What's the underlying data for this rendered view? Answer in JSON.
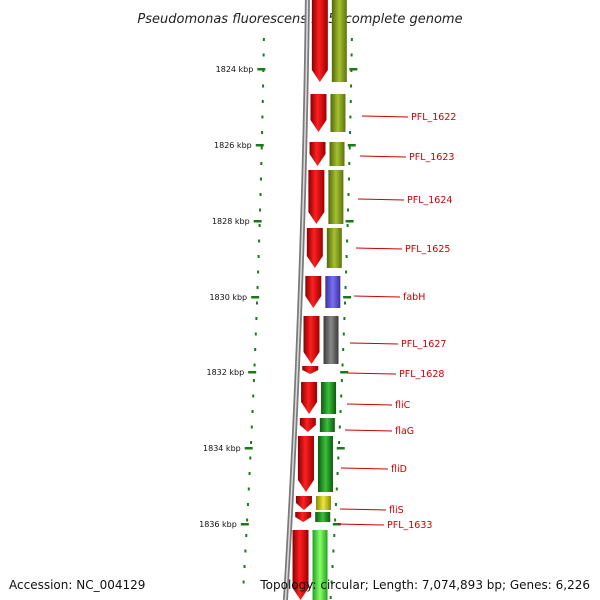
{
  "title": "Pseudomonas fluorescens Pf-5, complete genome",
  "scale_labels": [
    "1824 kbp",
    "1826 kbp",
    "1828 kbp",
    "1830 kbp",
    "1832 kbp",
    "1834 kbp",
    "1836 kbp"
  ],
  "gene_labels": [
    "PFL_1622",
    "PFL_1623",
    "PFL_1624",
    "PFL_1625",
    "fabH",
    "PFL_1627",
    "PFL_1628",
    "fliC",
    "flaG",
    "fliD",
    "fliS",
    "PFL_1633"
  ],
  "footer": {
    "accession": "Accession: NC_004129",
    "topology": "Topology: circular; Length: 7,074,893 bp; Genes: 6,226"
  },
  "colors": {
    "forward_strand": "#e00000",
    "backbone": "#888888",
    "label_line": "#cc0000",
    "scale_tick": "#1a7a1a",
    "cog_olive": "#7a9a10",
    "cog_blue": "#5a4fd0",
    "cog_gray": "#666666",
    "cog_green": "#2a9a2a",
    "cog_light_green": "#44dd44"
  }
}
